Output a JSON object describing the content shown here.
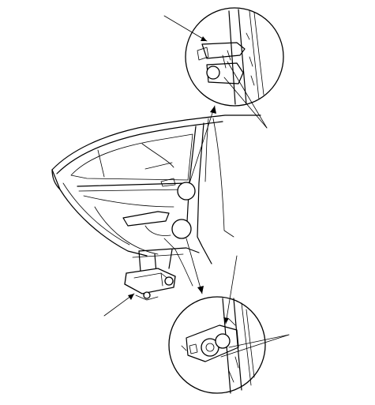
{
  "figure": {
    "subject": "rear-door-hinge-removal-illustration",
    "labels": [],
    "colors": {
      "line": "#000000",
      "background": "#ffffff"
    }
  }
}
